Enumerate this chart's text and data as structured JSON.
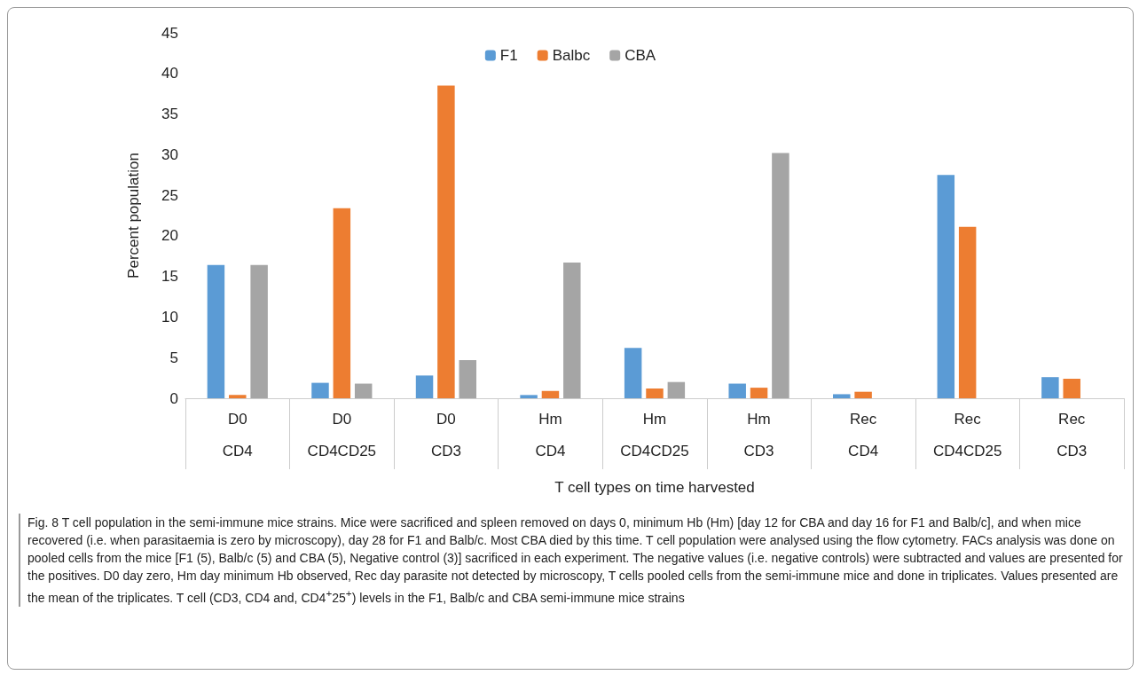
{
  "chart_data": {
    "type": "bar",
    "xlabel": "T cell types on time harvested",
    "ylabel": "Percent population",
    "categories": [
      "D0\n\nCD4",
      "D0\n\nCD4CD25",
      "D0\n\nCD3",
      "Hm\n\nCD4",
      "Hm\n\nCD4CD25",
      "Hm\n\nCD3",
      "Rec\n\nCD4",
      "Rec\n\nCD4CD25",
      "Rec\n\nCD3"
    ],
    "series": [
      {
        "name": "F1",
        "color": "#5b9bd5",
        "values": [
          16.4,
          1.9,
          2.8,
          0.4,
          6.2,
          1.8,
          0.5,
          27.5,
          2.6
        ]
      },
      {
        "name": "Balbc",
        "color": "#ed7d31",
        "values": [
          0.4,
          23.4,
          38.5,
          0.9,
          1.2,
          1.3,
          0.8,
          21.1,
          2.4
        ]
      },
      {
        "name": "CBA",
        "color": "#a5a5a5",
        "values": [
          16.4,
          1.8,
          4.7,
          16.7,
          2.0,
          30.2,
          null,
          null,
          null
        ]
      }
    ],
    "ylim": [
      0,
      45
    ],
    "yticks": [
      0,
      5,
      10,
      15,
      20,
      25,
      30,
      35,
      40,
      45
    ],
    "grid": false,
    "legend": "top",
    "annotations": [
      "Fig. 8 T cell population in the semi-immune mice strains. Mice were sacrificed and spleen removed on days 0, minimum Hb (Hm) [day 12 for CBA and day 16 for F1 and Balb/c], and when mice recovered (i.e. when parasitaemia is zero by microscopy), day 28 for F1 and Balb/c. Most CBA died by this time. T cell population were analysed using the flow cytometry. FACs analysis was done on pooled cells from the mice [F1 (5), Balb/c (5) and CBA (5), Negative control (3)] sacrificed in each experiment. The negative values (i.e. negative controls) were subtracted and values are presented for the positives. D0 day zero, Hm day minimum Hb observed, Rec day parasite not detected by microscopy, T cells pooled cells from the semi-immune mice and done in triplicates. Values presented are the mean of the triplicates. T cell (CD3, CD4 and, CD4$^{+}$25$^{+}$) levels in the F1, Balb/c and CBA semi-immune mice strains"
    ]
  }
}
